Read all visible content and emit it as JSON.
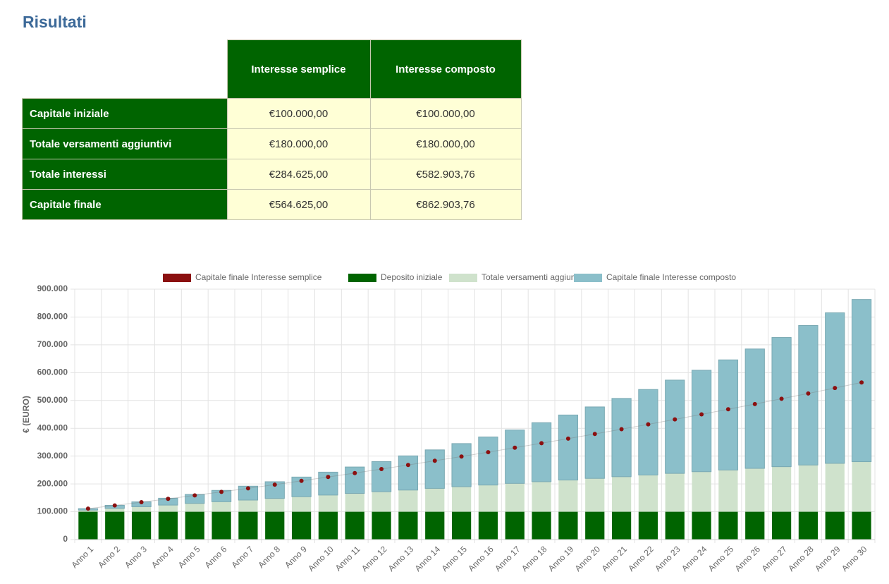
{
  "header": {
    "title": "Risultati"
  },
  "table": {
    "columns": [
      "Interesse semplice",
      "Interesse composto"
    ],
    "rows": [
      [
        "Capitale iniziale",
        "€100.000,00",
        "€100.000,00"
      ],
      [
        "Totale versamenti aggiuntivi",
        "€180.000,00",
        "€180.000,00"
      ],
      [
        "Totale interessi",
        "€284.625,00",
        "€582.903,76"
      ],
      [
        "Capitale finale",
        "€564.625,00",
        "€862.903,76"
      ]
    ]
  },
  "chart_data": {
    "type": "bar",
    "stacked": true,
    "grid": true,
    "legend": "top",
    "ylabel": "€ (EURO)",
    "ylim": [
      0,
      900000
    ],
    "yticks": [
      0,
      {
        "value": 100000,
        "label": "100.000"
      },
      {
        "value": 200000,
        "label": "200.000"
      },
      {
        "value": 300000,
        "label": "300.000"
      },
      {
        "value": 400000,
        "label": "400.000"
      },
      {
        "value": 500000,
        "label": "500.000"
      },
      {
        "value": 600000,
        "label": "600.000"
      },
      {
        "value": 700000,
        "label": "700.000"
      },
      {
        "value": 800000,
        "label": "800.000"
      },
      {
        "value": 900000,
        "label": "900.000"
      }
    ],
    "categories": [
      "Anno 1",
      "Anno 2",
      "Anno 3",
      "Anno 4",
      "Anno 5",
      "Anno 6",
      "Anno 7",
      "Anno 8",
      "Anno 9",
      "Anno 10",
      "Anno 11",
      "Anno 12",
      "Anno 13",
      "Anno 14",
      "Anno 15",
      "Anno 16",
      "Anno 17",
      "Anno 18",
      "Anno 19",
      "Anno 20",
      "Anno 21",
      "Anno 22",
      "Anno 23",
      "Anno 24",
      "Anno 25",
      "Anno 26",
      "Anno 27",
      "Anno 28",
      "Anno 29",
      "Anno 30"
    ],
    "series": [
      {
        "name": "Capitale finale Interesse semplice",
        "type": "line",
        "color": "#8b1010",
        "values": [
          111137.5,
          122575,
          134312.5,
          146350,
          158687.5,
          171325,
          184262.5,
          197500,
          211037.5,
          224875,
          239012.5,
          253450,
          268187.5,
          283225,
          298562.5,
          314200,
          330137.5,
          346375,
          362912.5,
          379750,
          396887.5,
          414325,
          432062.5,
          450100,
          468437.5,
          487075,
          506012.5,
          525250,
          544787.5,
          564625
        ]
      },
      {
        "name": "Deposito iniziale",
        "type": "bar",
        "color": "#006400",
        "values": [
          100000,
          100000,
          100000,
          100000,
          100000,
          100000,
          100000,
          100000,
          100000,
          100000,
          100000,
          100000,
          100000,
          100000,
          100000,
          100000,
          100000,
          100000,
          100000,
          100000,
          100000,
          100000,
          100000,
          100000,
          100000,
          100000,
          100000,
          100000,
          100000,
          100000
        ]
      },
      {
        "name": "Totale versamenti aggiuntivi",
        "type": "bar",
        "color": "#cfe2cc",
        "values": [
          6000,
          12000,
          18000,
          24000,
          30000,
          36000,
          42000,
          48000,
          54000,
          60000,
          66000,
          72000,
          78000,
          84000,
          90000,
          96000,
          102000,
          108000,
          114000,
          120000,
          126000,
          132000,
          138000,
          144000,
          150000,
          156000,
          162000,
          168000,
          174000,
          180000
        ]
      },
      {
        "name": "Capitale finale Interesse composto",
        "type": "bar",
        "color": "#8bbfca",
        "values": [
          5256,
          11087,
          17524,
          24597,
          32339,
          40784,
          49968,
          59929,
          70706,
          82342,
          94880,
          108366,
          122850,
          138381,
          155015,
          172806,
          191815,
          212104,
          233737,
          256781,
          281315,
          307410,
          335147,
          364611,
          395888,
          429075,
          464265,
          501563,
          541075,
          582904
        ]
      }
    ]
  }
}
